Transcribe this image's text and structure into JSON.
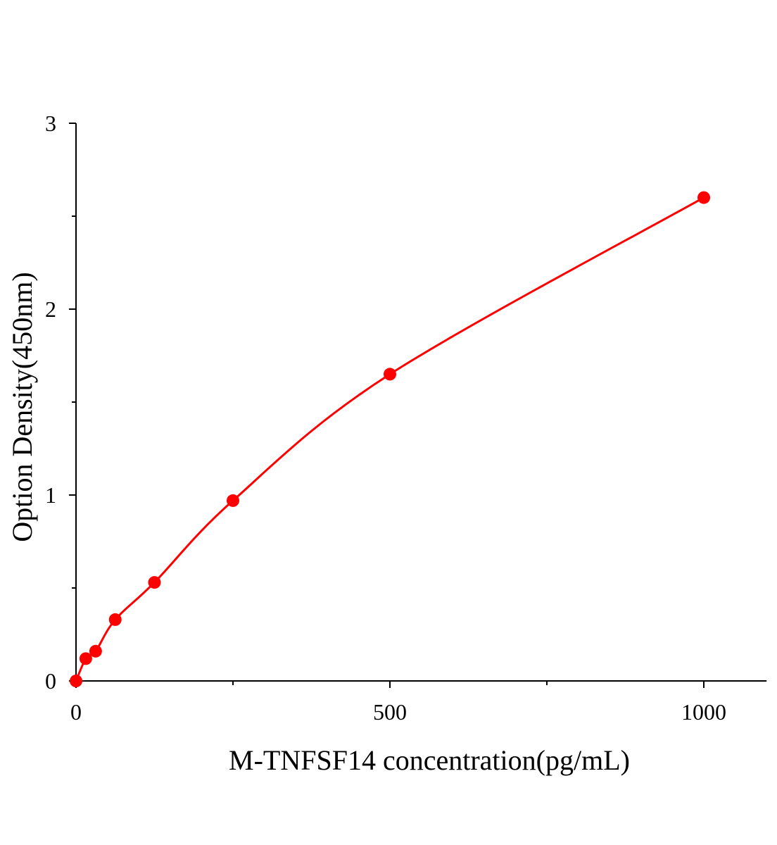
{
  "chart_data": {
    "type": "scatter",
    "title": "",
    "xlabel": "M-TNFSF14 concentration(pg/mL)",
    "ylabel": "Option Density(450nm)",
    "xlim": [
      0,
      1100
    ],
    "ylim": [
      0,
      3
    ],
    "xticks": [
      "0",
      "500",
      "1000"
    ],
    "yticks": [
      "0",
      "1",
      "2",
      "3"
    ],
    "grid": false,
    "series": [
      {
        "x": [
          0,
          15.6,
          31.25,
          62.5,
          125,
          250,
          500,
          1000
        ],
        "y": [
          0.0,
          0.12,
          0.16,
          0.33,
          0.53,
          0.97,
          1.65,
          2.6
        ],
        "color": "#ff0000",
        "fit_line": true
      }
    ]
  }
}
